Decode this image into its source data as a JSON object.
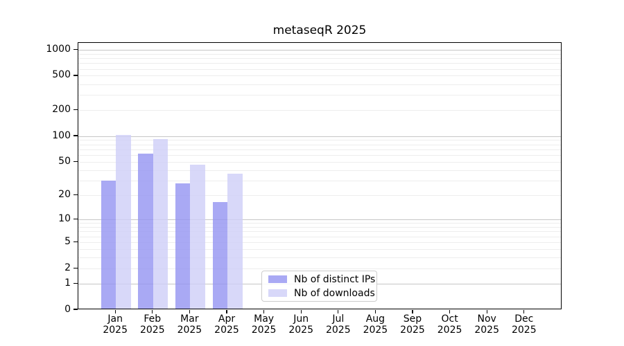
{
  "title": "metaseqR 2025",
  "chart_data": {
    "type": "bar",
    "title": "metaseqR 2025",
    "xlabel": "",
    "ylabel": "",
    "scale": "log10(value+1)",
    "grid": "horizontal log gridlines, minor and major, on",
    "legend_position": "inside plot, lower center-left",
    "categories": [
      "Jan",
      "Feb",
      "Mar",
      "Apr",
      "May",
      "Jun",
      "Jul",
      "Aug",
      "Sep",
      "Oct",
      "Nov",
      "Dec"
    ],
    "category_year": "2025",
    "yticks": [
      0,
      1,
      2,
      5,
      10,
      20,
      50,
      100,
      200,
      500,
      1000
    ],
    "ylim": [
      0,
      1200
    ],
    "series": [
      {
        "name": "Nb of distinct IPs",
        "swatch_color": "#a9a9f4",
        "bar_color": "#9494f1",
        "bar_alpha": 0.8,
        "values": [
          29,
          60,
          27,
          16,
          0,
          0,
          0,
          0,
          0,
          0,
          0,
          0
        ]
      },
      {
        "name": "Nb of downloads",
        "swatch_color": "#d8d8f9",
        "bar_color": "#cecef8",
        "bar_alpha": 0.8,
        "values": [
          100,
          90,
          45,
          35,
          0,
          0,
          0,
          0,
          0,
          0,
          0,
          0
        ]
      }
    ],
    "colors": {
      "major_grid": "#c6c6c6",
      "minor_grid": "#ededed",
      "axis_frame": "#000000",
      "legend_border": "#cccccc",
      "background": "#ffffff"
    }
  }
}
